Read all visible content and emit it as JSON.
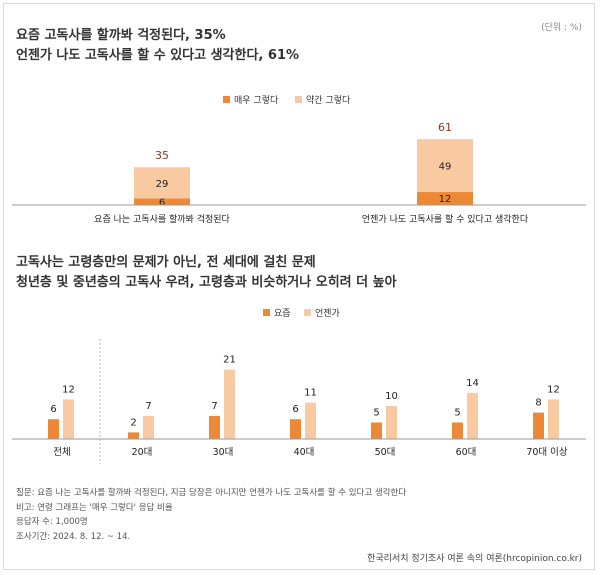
{
  "titles": {
    "line1": "요즘 고독사를 할까봐  걱정된다, 35%",
    "line2": "언젠가 나도 고독사를 할 수 있다고 생각한다, 61%",
    "line3": "고독사는 고령층만의 문제가 아닌, 전 세대에 걸친 문제",
    "line4": "청년층 및 중년층의 고독사 우려, 고령층과 비슷하거나 오히려 더 높아"
  },
  "unit_label": "(단위 : %)",
  "colors": {
    "strong": "#ED8936",
    "light": "#F9C9A2",
    "total_label": "#8B3A1A"
  },
  "chart_data": [
    {
      "type": "bar",
      "stacked": true,
      "categories": [
        "요즘 나는 고독사를 할까봐 걱정된다",
        "언젠가 나도 고독사를 할 수 있다고 생각한다"
      ],
      "series": [
        {
          "name": "매우 그렇다",
          "values": [
            6,
            12
          ]
        },
        {
          "name": "약간 그렇다",
          "values": [
            29,
            49
          ]
        }
      ],
      "totals": [
        35,
        61
      ],
      "ylim": [
        0,
        100
      ]
    },
    {
      "type": "bar",
      "categories": [
        "전체",
        "20대",
        "30대",
        "40대",
        "50대",
        "60대",
        "70대 이상"
      ],
      "series": [
        {
          "name": "요즘",
          "values": [
            6,
            2,
            7,
            6,
            5,
            5,
            8
          ]
        },
        {
          "name": "언젠가",
          "values": [
            12,
            7,
            21,
            11,
            10,
            14,
            12
          ]
        }
      ],
      "ylim": [
        0,
        25
      ]
    }
  ],
  "notes": {
    "question": "질문: 요즘 나는 고독사를 할까봐 걱정된다, 지금 당장은 아니지만 언젠가 나도 고독사를 할 수 있다고 생각한다",
    "remark": "비고: 연령 그래프는 '매우 그렇다' 응답 비율",
    "respondents": "응답자 수: 1,000명",
    "period": "조사기간: 2024. 8. 12. ~ 14."
  },
  "source": "한국리서치 정기조사 여론 속의 여론(hrcopinion.co.kr)"
}
